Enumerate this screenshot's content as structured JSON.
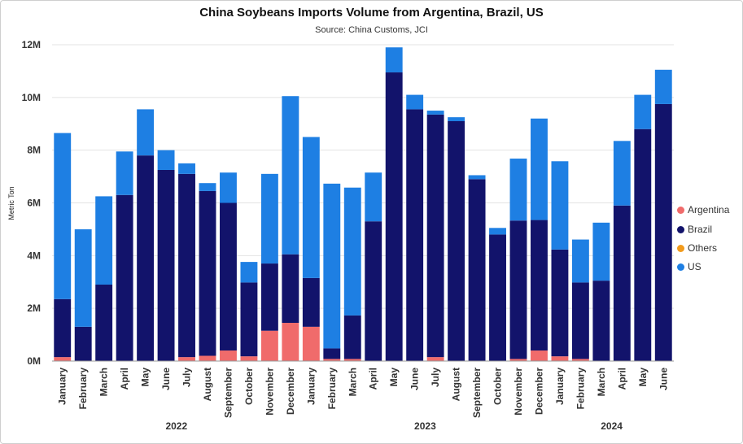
{
  "title": "China Soybeans Imports Volume from Argentina, Brazil, US",
  "subtitle": "Source: China Customs, JCI",
  "chart_data": {
    "type": "bar",
    "stacked": true,
    "title": "China Soybeans Imports Volume from Argentina, Brazil, US",
    "subtitle": "Source: China Customs, JCI",
    "ylabel": "Metric Ton",
    "ylim": [
      0,
      12000000
    ],
    "yticks": [
      "0M",
      "2M",
      "4M",
      "6M",
      "8M",
      "10M",
      "12M"
    ],
    "grid": true,
    "legend_position": "right",
    "categories": [
      "January",
      "February",
      "March",
      "April",
      "May",
      "June",
      "July",
      "August",
      "September",
      "October",
      "November",
      "December",
      "January",
      "February",
      "March",
      "April",
      "May",
      "June",
      "July",
      "August",
      "September",
      "October",
      "November",
      "December",
      "January",
      "February",
      "March",
      "April",
      "May",
      "June"
    ],
    "year_groups": [
      {
        "label": "2022",
        "start": 0,
        "end": 11
      },
      {
        "label": "2023",
        "start": 12,
        "end": 23
      },
      {
        "label": "2024",
        "start": 24,
        "end": 29
      }
    ],
    "series": [
      {
        "name": "Argentina",
        "color": "#f06b6b",
        "values": [
          150000,
          0,
          0,
          0,
          0,
          0,
          150000,
          200000,
          400000,
          180000,
          1150000,
          1450000,
          1300000,
          80000,
          80000,
          0,
          0,
          0,
          150000,
          0,
          0,
          0,
          80000,
          400000,
          180000,
          80000,
          0,
          0,
          0,
          0
        ]
      },
      {
        "name": "Brazil",
        "color": "#12136b",
        "values": [
          2200000,
          1300000,
          2900000,
          6300000,
          7800000,
          7250000,
          6950000,
          6250000,
          5600000,
          2800000,
          2550000,
          2600000,
          1850000,
          400000,
          1650000,
          5300000,
          10950000,
          9550000,
          9200000,
          9100000,
          6900000,
          4800000,
          5250000,
          4950000,
          4050000,
          2900000,
          3050000,
          5900000,
          8800000,
          9750000
        ]
      },
      {
        "name": "Others",
        "color": "#f29b1c",
        "values": [
          0,
          0,
          0,
          0,
          0,
          0,
          0,
          0,
          0,
          0,
          0,
          0,
          0,
          0,
          0,
          0,
          0,
          0,
          0,
          0,
          0,
          0,
          0,
          0,
          0,
          0,
          0,
          0,
          0,
          0
        ]
      },
      {
        "name": "US",
        "color": "#1e7fe3",
        "values": [
          6300000,
          3700000,
          3350000,
          1650000,
          1750000,
          750000,
          400000,
          300000,
          1150000,
          780000,
          3400000,
          6000000,
          5350000,
          6250000,
          4850000,
          1850000,
          950000,
          550000,
          150000,
          150000,
          150000,
          250000,
          2350000,
          3850000,
          3350000,
          1630000,
          2200000,
          2450000,
          1300000,
          1300000
        ]
      }
    ]
  }
}
